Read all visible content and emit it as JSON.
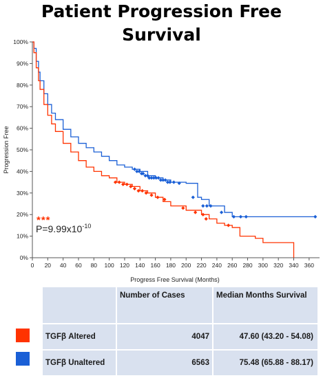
{
  "title": "Patient Progression Free Survival",
  "colors": {
    "altered": "#ff3300",
    "unaltered": "#1a5fd6",
    "table_bg": "#d9e1ef",
    "axis": "#555555"
  },
  "significance": {
    "stars": "***",
    "p_value": "P=9.99x10",
    "p_exponent": "-10"
  },
  "table": {
    "headers": [
      "Number of Cases",
      "Median Months Survival"
    ],
    "rows": [
      {
        "group": "TGFβ Altered",
        "cases": "4047",
        "median": "47.60 (43.20 - 54.08)",
        "color": "#ff3300"
      },
      {
        "group": "TGFβ Unaltered",
        "cases": "6563",
        "median": "75.48 (65.88 - 88.17)",
        "color": "#1a5fd6"
      }
    ]
  },
  "chart_data": {
    "type": "line",
    "step": true,
    "title": "Patient Progression Free Survival",
    "xlabel": "Progress Free Survival (Months)",
    "ylabel": "Progression Free",
    "xlim": [
      0,
      370
    ],
    "ylim": [
      0,
      100
    ],
    "xticks": [
      0,
      20,
      40,
      60,
      80,
      100,
      120,
      140,
      160,
      180,
      200,
      220,
      240,
      260,
      280,
      300,
      320,
      340,
      360
    ],
    "yticks": [
      0,
      10,
      20,
      30,
      40,
      50,
      60,
      70,
      80,
      90,
      100
    ],
    "ytick_labels": [
      "0%",
      "10%",
      "20%",
      "30%",
      "40%",
      "50%",
      "60%",
      "70%",
      "80%",
      "90%",
      "100%"
    ],
    "series": [
      {
        "name": "TGFβ Unaltered",
        "color": "#1a5fd6",
        "x": [
          0,
          2,
          5,
          8,
          10,
          15,
          20,
          25,
          30,
          40,
          50,
          60,
          70,
          80,
          90,
          100,
          110,
          120,
          130,
          140,
          150,
          160,
          170,
          180,
          200,
          210,
          215,
          220,
          230,
          240,
          250,
          260,
          270,
          280,
          300,
          320,
          340,
          368
        ],
        "y": [
          100,
          97,
          91,
          86,
          82,
          76,
          71,
          67,
          64,
          59.5,
          56,
          53,
          51,
          49,
          47,
          45,
          43,
          42,
          41,
          40,
          38,
          37,
          36,
          35,
          34.5,
          34.5,
          28,
          27,
          24,
          24,
          21,
          19,
          19,
          19,
          19,
          19,
          19,
          19
        ],
        "censor_x": [
          133,
          136,
          139,
          142,
          144,
          147,
          150,
          152,
          155,
          158,
          161,
          164,
          167,
          170,
          173,
          176,
          179,
          184,
          191,
          209,
          222,
          227,
          232,
          246,
          262,
          271,
          278,
          368
        ],
        "censor_y": [
          41,
          40,
          40,
          39,
          39,
          38,
          38,
          37,
          37,
          37,
          37,
          37,
          36,
          36,
          36,
          35,
          35,
          35,
          34.5,
          28,
          24,
          24,
          24,
          21,
          19,
          19,
          19,
          19
        ]
      },
      {
        "name": "TGFβ Altered",
        "color": "#ff3300",
        "x": [
          0,
          2,
          5,
          8,
          10,
          15,
          20,
          25,
          30,
          40,
          50,
          60,
          70,
          80,
          90,
          100,
          110,
          120,
          130,
          140,
          150,
          160,
          170,
          180,
          200,
          220,
          230,
          240,
          250,
          260,
          270,
          290,
          300,
          310,
          320,
          340
        ],
        "y": [
          100,
          95,
          88,
          82,
          78,
          71,
          66,
          62,
          58.5,
          53,
          49,
          45,
          42,
          40,
          38,
          37,
          35,
          34,
          33,
          31,
          30,
          28,
          26,
          24,
          22,
          20,
          18,
          16,
          15,
          14,
          10,
          9,
          7,
          7,
          7,
          0
        ],
        "censor_x": [
          108,
          113,
          118,
          123,
          128,
          133,
          138,
          143,
          148,
          155,
          163,
          172,
          196,
          212,
          222,
          226,
          255
        ],
        "censor_y": [
          35,
          35,
          34,
          34,
          33,
          32,
          31,
          31,
          30,
          29,
          28,
          27,
          23,
          21,
          20,
          18,
          15
        ]
      }
    ]
  }
}
